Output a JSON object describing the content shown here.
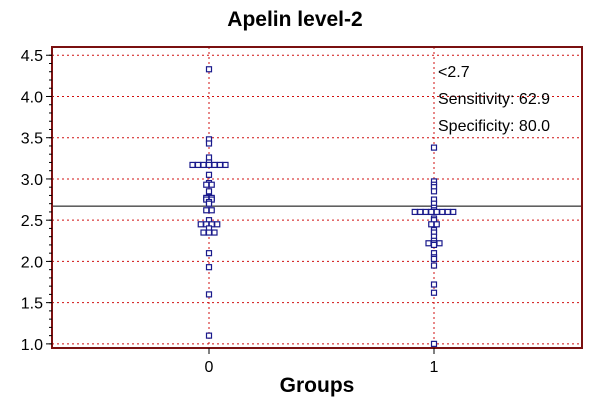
{
  "chart_data": {
    "type": "scatter",
    "title": "Apelin level-2",
    "xlabel": "Groups",
    "ylabel": "",
    "categories": [
      "0",
      "1"
    ],
    "ylim": [
      0.95,
      4.6
    ],
    "yticks": [
      1.0,
      1.5,
      2.0,
      2.5,
      3.0,
      3.5,
      4.0,
      4.5
    ],
    "ytick_labels": [
      "1.0",
      "1.5",
      "2.0",
      "2.5",
      "3.0",
      "3.5",
      "4.0",
      "4.5"
    ],
    "grid": true,
    "cutoff": 2.67,
    "annotations": [
      "<2.7",
      "Sensitivity: 62.9",
      "Specificity: 80.0"
    ],
    "colors": {
      "frame": "#7a1010",
      "grid": "#d01010",
      "marker": "#1a1a8c",
      "cutoff_line": "#000000"
    },
    "series": [
      {
        "category": "0",
        "values": [
          4.33,
          3.48,
          3.43,
          3.26,
          3.2,
          3.17,
          3.17,
          3.17,
          3.17,
          3.17,
          3.17,
          3.17,
          3.05,
          2.95,
          2.93,
          2.93,
          2.85,
          2.78,
          2.77,
          2.77,
          2.75,
          2.75,
          2.72,
          2.7,
          2.62,
          2.62,
          2.5,
          2.45,
          2.45,
          2.45,
          2.45,
          2.4,
          2.35,
          2.35,
          2.35,
          2.1,
          1.93,
          1.6,
          1.1
        ]
      },
      {
        "category": "1",
        "values": [
          3.38,
          2.97,
          2.93,
          2.9,
          2.85,
          2.75,
          2.7,
          2.65,
          2.62,
          2.6,
          2.6,
          2.6,
          2.6,
          2.6,
          2.6,
          2.6,
          2.6,
          2.52,
          2.5,
          2.45,
          2.45,
          2.38,
          2.35,
          2.3,
          2.25,
          2.22,
          2.22,
          2.22,
          2.2,
          2.1,
          2.05,
          2.03,
          1.95,
          1.72,
          1.62,
          1.0
        ]
      }
    ]
  }
}
